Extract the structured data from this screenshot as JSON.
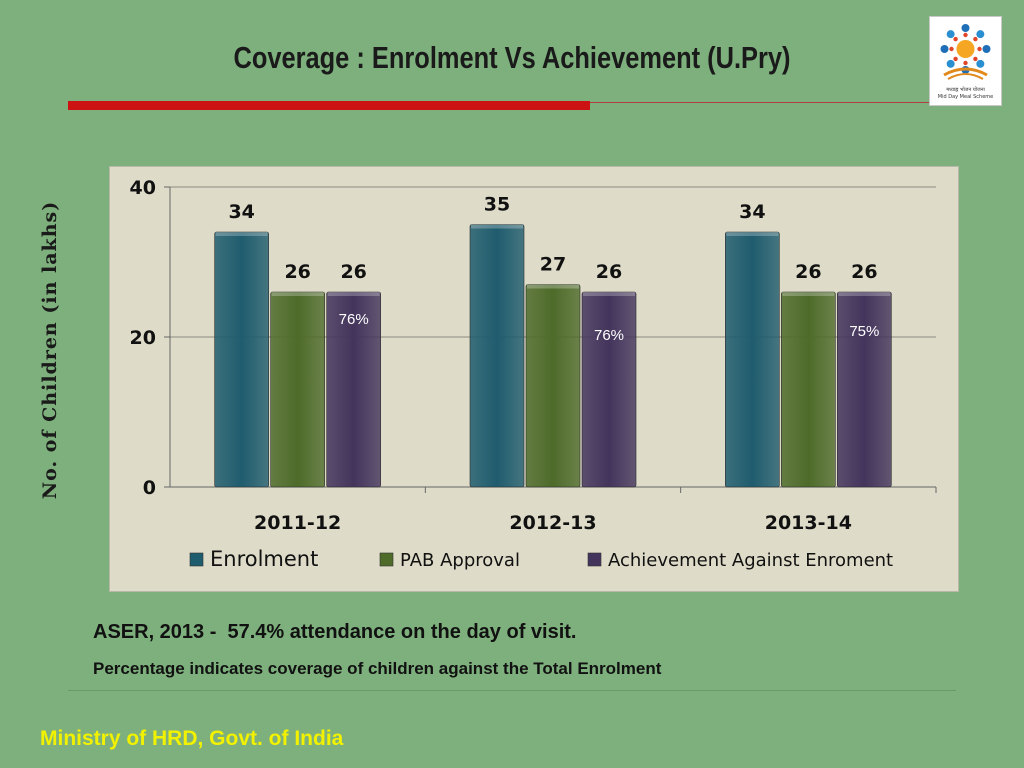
{
  "slide": {
    "title": "Coverage : Enrolment Vs Achievement (U.Pry)",
    "note_primary": "ASER, 2013 -  57.4% attendance on the day of visit.",
    "note_secondary": "Percentage indicates coverage of children against the Total Enrolment",
    "footer": "Ministry of HRD, Govt. of India",
    "logo": {
      "icon": "mid-day-meal-scheme-logo",
      "text_hindi": "मध्याह्न भोजन योजना",
      "text_english": "Mid Day Meal Scheme"
    }
  },
  "chart_data": {
    "type": "bar",
    "title": "",
    "xlabel": "",
    "ylabel": "No. of Children (in lakhs)",
    "ylim": [
      0,
      40
    ],
    "yticks": [
      0,
      20,
      40
    ],
    "grid": true,
    "legend_position": "bottom",
    "categories": [
      "2011-12",
      "2012-13",
      "2013-14"
    ],
    "series": [
      {
        "name": "Enrolment",
        "values": [
          34,
          35,
          34
        ],
        "color": "#1f5c6e"
      },
      {
        "name": "PAB Approval",
        "values": [
          26,
          27,
          26
        ],
        "color": "#4e6b2a"
      },
      {
        "name": "Achievement Against Enroment",
        "values": [
          26,
          26,
          26
        ],
        "color": "#43345c"
      }
    ],
    "data_labels": [
      [
        "34",
        "35",
        "34"
      ],
      [
        "26",
        "27",
        "26"
      ],
      [
        "26",
        "26",
        "26"
      ]
    ],
    "annotations": [
      {
        "series": "Achievement Against Enroment",
        "category": "2011-12",
        "text": "76%"
      },
      {
        "series": "Achievement Against Enroment",
        "category": "2012-13",
        "text": "76%"
      },
      {
        "series": "Achievement Against Enroment",
        "category": "2013-14",
        "text": "75%"
      }
    ]
  }
}
